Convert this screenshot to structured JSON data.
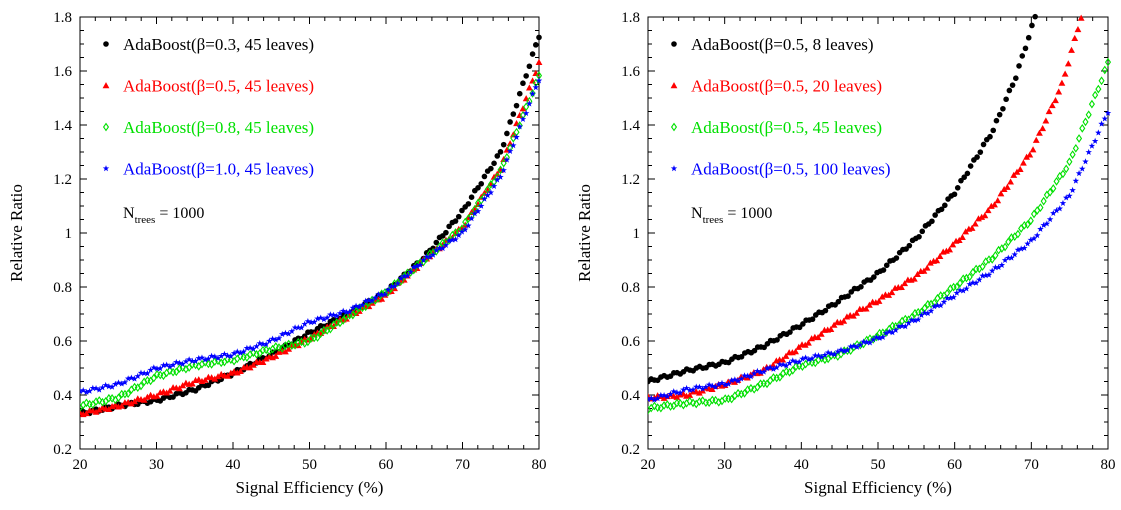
{
  "chart_data": [
    {
      "type": "scatter",
      "xlabel": "Signal Efficiency (%)",
      "ylabel": "Relative Ratio",
      "xlim": [
        20,
        80
      ],
      "ylim": [
        0.2,
        1.8
      ],
      "xticks": [
        "20",
        "30",
        "40",
        "50",
        "60",
        "70",
        "80"
      ],
      "yticks": [
        "0.2",
        "0.4",
        "0.6",
        "0.8",
        "1",
        "1.2",
        "1.4",
        "1.6",
        "1.8"
      ],
      "grid": false,
      "legend_position": "top-left",
      "annotation": {
        "main": "N",
        "sub": "trees",
        "rest": " = 1000"
      },
      "series": [
        {
          "name": "AdaBoost(β=0.3, 45 leaves)",
          "color": "#000000",
          "marker": "circle",
          "x": [
            20,
            25,
            30,
            35,
            40,
            45,
            50,
            55,
            60,
            65,
            70,
            75,
            80
          ],
          "y": [
            0.33,
            0.36,
            0.38,
            0.42,
            0.48,
            0.55,
            0.63,
            0.7,
            0.78,
            0.91,
            1.08,
            1.3,
            1.73
          ]
        },
        {
          "name": "AdaBoost(β=0.5, 45 leaves)",
          "color": "#ff0000",
          "marker": "triangle",
          "x": [
            20,
            25,
            30,
            35,
            40,
            45,
            50,
            55,
            60,
            65,
            70,
            75,
            80
          ],
          "y": [
            0.33,
            0.36,
            0.4,
            0.45,
            0.48,
            0.54,
            0.61,
            0.69,
            0.77,
            0.9,
            1.02,
            1.24,
            1.63
          ]
        },
        {
          "name": "AdaBoost(β=0.8, 45 leaves)",
          "color": "#00e000",
          "marker": "diamond",
          "x": [
            20,
            25,
            30,
            35,
            40,
            45,
            50,
            55,
            60,
            65,
            70,
            75,
            80
          ],
          "y": [
            0.36,
            0.39,
            0.47,
            0.51,
            0.53,
            0.57,
            0.6,
            0.69,
            0.78,
            0.9,
            1.02,
            1.23,
            1.58
          ]
        },
        {
          "name": "AdaBoost(β=1.0, 45 leaves)",
          "color": "#0000ff",
          "marker": "star",
          "x": [
            20,
            25,
            30,
            35,
            40,
            45,
            50,
            55,
            60,
            65,
            70,
            75,
            80
          ],
          "y": [
            0.41,
            0.44,
            0.5,
            0.53,
            0.55,
            0.6,
            0.67,
            0.71,
            0.78,
            0.9,
            1.0,
            1.21,
            1.57
          ]
        }
      ]
    },
    {
      "type": "scatter",
      "xlabel": "Signal Efficiency (%)",
      "ylabel": "Relative Ratio",
      "xlim": [
        20,
        80
      ],
      "ylim": [
        0.2,
        1.8
      ],
      "xticks": [
        "20",
        "30",
        "40",
        "50",
        "60",
        "70",
        "80"
      ],
      "yticks": [
        "0.2",
        "0.4",
        "0.6",
        "0.8",
        "1",
        "1.2",
        "1.4",
        "1.6",
        "1.8"
      ],
      "grid": false,
      "legend_position": "top-left",
      "annotation": {
        "main": "N",
        "sub": "trees",
        "rest": " = 1000"
      },
      "series": [
        {
          "name": "AdaBoost(β=0.5, 8 leaves)",
          "color": "#000000",
          "marker": "circle",
          "x": [
            20,
            25,
            30,
            35,
            40,
            45,
            50,
            55,
            60,
            65,
            68,
            70.5
          ],
          "y": [
            0.45,
            0.49,
            0.52,
            0.58,
            0.66,
            0.75,
            0.85,
            0.98,
            1.15,
            1.38,
            1.58,
            1.8
          ]
        },
        {
          "name": "AdaBoost(β=0.5, 20 leaves)",
          "color": "#ff0000",
          "marker": "triangle",
          "x": [
            20,
            25,
            30,
            35,
            40,
            45,
            50,
            55,
            60,
            65,
            70,
            74,
            76.5
          ],
          "y": [
            0.39,
            0.4,
            0.44,
            0.49,
            0.58,
            0.67,
            0.75,
            0.84,
            0.96,
            1.1,
            1.3,
            1.55,
            1.8
          ]
        },
        {
          "name": "AdaBoost(β=0.5, 45 leaves)",
          "color": "#00e000",
          "marker": "diamond",
          "x": [
            20,
            25,
            30,
            35,
            40,
            45,
            50,
            55,
            60,
            65,
            70,
            75,
            80
          ],
          "y": [
            0.35,
            0.37,
            0.38,
            0.44,
            0.51,
            0.55,
            0.62,
            0.7,
            0.8,
            0.91,
            1.05,
            1.26,
            1.63
          ]
        },
        {
          "name": "AdaBoost(β=0.5, 100 leaves)",
          "color": "#0000ff",
          "marker": "star",
          "x": [
            20,
            25,
            30,
            35,
            40,
            45,
            50,
            55,
            60,
            65,
            70,
            75,
            80
          ],
          "y": [
            0.38,
            0.42,
            0.44,
            0.49,
            0.53,
            0.56,
            0.61,
            0.68,
            0.77,
            0.86,
            0.97,
            1.14,
            1.45
          ]
        }
      ]
    }
  ]
}
